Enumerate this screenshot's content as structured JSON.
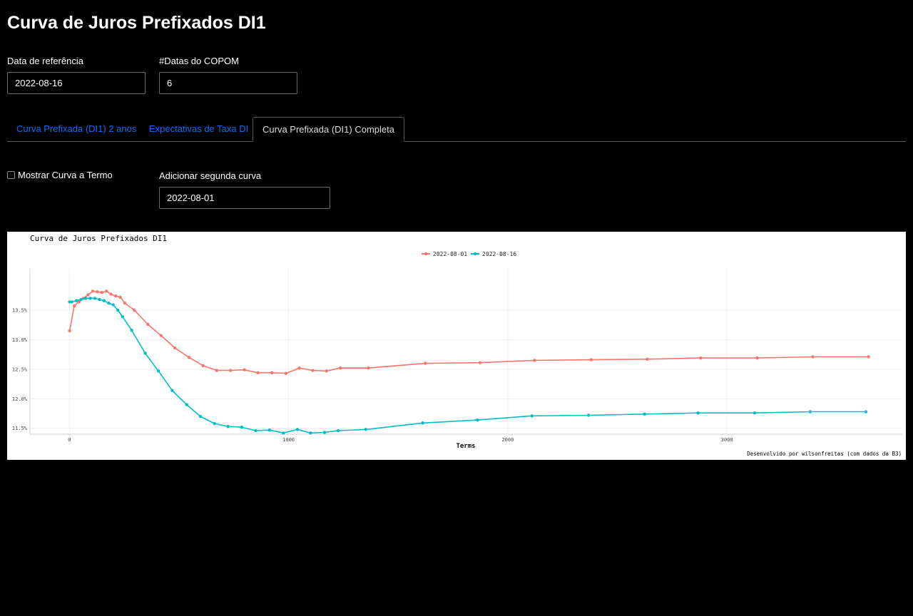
{
  "page": {
    "title": "Curva de Juros Prefixados DI1"
  },
  "controls": {
    "reference_date": {
      "label": "Data de referência",
      "value": "2022-08-16"
    },
    "copom_dates": {
      "label": "#Datas do COPOM",
      "value": "6"
    }
  },
  "tabs": [
    {
      "label": "Curva Prefixada (DI1) 2 anos",
      "active": false
    },
    {
      "label": "Expectativas de Taxa DI",
      "active": false
    },
    {
      "label": "Curva Prefixada (DI1) Completa",
      "active": true
    }
  ],
  "options": {
    "show_forward": {
      "label": "Mostrar Curva a Termo",
      "checked": false
    },
    "second_curve": {
      "label": "Adicionar segunda curva",
      "value": "2022-08-01"
    }
  },
  "chart_data": {
    "type": "line",
    "title": "Curva de Juros Prefixados DI1",
    "xlabel": "Terms",
    "ylabel": "",
    "caption": "Desenvolvido por wilsonfreitas (com dados da B3)",
    "legend_position": "top-center",
    "xlim": [
      -180,
      3800
    ],
    "ylim": [
      11.4,
      14.2
    ],
    "x_ticks": [
      {
        "value": 0,
        "label": "0"
      },
      {
        "value": 1000,
        "label": "1000"
      },
      {
        "value": 2000,
        "label": "2000"
      },
      {
        "value": 3000,
        "label": "3000"
      }
    ],
    "y_ticks": [
      {
        "value": 11.5,
        "label": "11.5%"
      },
      {
        "value": 12.0,
        "label": "12.0%"
      },
      {
        "value": 12.5,
        "label": "12.5%"
      },
      {
        "value": 13.0,
        "label": "13.0%"
      },
      {
        "value": 13.5,
        "label": "13.5%"
      }
    ],
    "series": [
      {
        "name": "2022-08-01",
        "color": "#F8766D",
        "x": [
          1,
          22,
          43,
          64,
          85,
          106,
          127,
          148,
          169,
          190,
          211,
          232,
          253,
          296,
          358,
          418,
          481,
          546,
          610,
          672,
          735,
          798,
          860,
          924,
          988,
          1049,
          1110,
          1173,
          1236,
          1364,
          1624,
          1874,
          2122,
          2380,
          2636,
          2880,
          3138,
          3392,
          3646
        ],
        "values": [
          13.15,
          13.57,
          13.64,
          13.7,
          13.76,
          13.82,
          13.81,
          13.8,
          13.82,
          13.77,
          13.74,
          13.72,
          13.62,
          13.5,
          13.26,
          13.07,
          12.86,
          12.7,
          12.56,
          12.48,
          12.48,
          12.49,
          12.44,
          12.44,
          12.43,
          12.52,
          12.48,
          12.47,
          12.52,
          12.52,
          12.6,
          12.61,
          12.65,
          12.66,
          12.67,
          12.69,
          12.69,
          12.71,
          12.71
        ]
      },
      {
        "name": "2022-08-16",
        "color": "#00BFC4",
        "x": [
          1,
          11,
          32,
          53,
          74,
          95,
          116,
          137,
          158,
          179,
          200,
          221,
          242,
          284,
          346,
          406,
          469,
          535,
          598,
          662,
          724,
          786,
          850,
          913,
          976,
          1040,
          1100,
          1164,
          1226,
          1352,
          1612,
          1862,
          2110,
          2368,
          2624,
          2868,
          3126,
          3380,
          3634
        ],
        "values": [
          13.64,
          13.64,
          13.66,
          13.68,
          13.7,
          13.7,
          13.7,
          13.68,
          13.66,
          13.62,
          13.59,
          13.5,
          13.39,
          13.16,
          12.77,
          12.47,
          12.14,
          11.9,
          11.7,
          11.58,
          11.53,
          11.52,
          11.46,
          11.47,
          11.42,
          11.48,
          11.42,
          11.43,
          11.46,
          11.48,
          11.59,
          11.64,
          11.71,
          11.72,
          11.74,
          11.76,
          11.76,
          11.78,
          11.78
        ]
      }
    ]
  }
}
